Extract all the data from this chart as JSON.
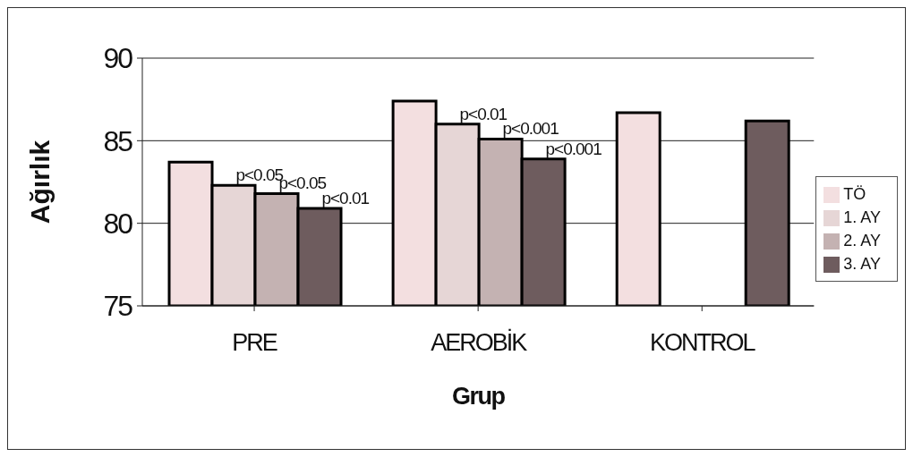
{
  "chart_data": {
    "type": "bar",
    "xlabel": "Grup",
    "ylabel": "Ağırlık",
    "categories": [
      "PRE",
      "AEROBİK",
      "KONTROL"
    ],
    "ylim": [
      75,
      90
    ],
    "yticks": [
      75,
      80,
      85,
      90
    ],
    "grid": "y",
    "legend": "right",
    "series": [
      {
        "name": "TÖ",
        "color": "#f3dfe0",
        "values": [
          83.7,
          87.4,
          86.7
        ]
      },
      {
        "name": "1. AY",
        "color": "#e6d6d6",
        "values": [
          82.3,
          86.0,
          null
        ],
        "value_labels": [
          "p<0.05",
          "p<0.01",
          null
        ]
      },
      {
        "name": "2. AY",
        "color": "#c4b2b2",
        "values": [
          81.8,
          85.1,
          null
        ],
        "value_labels": [
          "p<0.05",
          "p<0.001",
          null
        ]
      },
      {
        "name": "3. AY",
        "color": "#6e5c5e",
        "values": [
          80.9,
          83.9,
          86.2
        ],
        "value_labels": [
          "p<0.01",
          "p<0.001",
          null
        ]
      }
    ]
  }
}
